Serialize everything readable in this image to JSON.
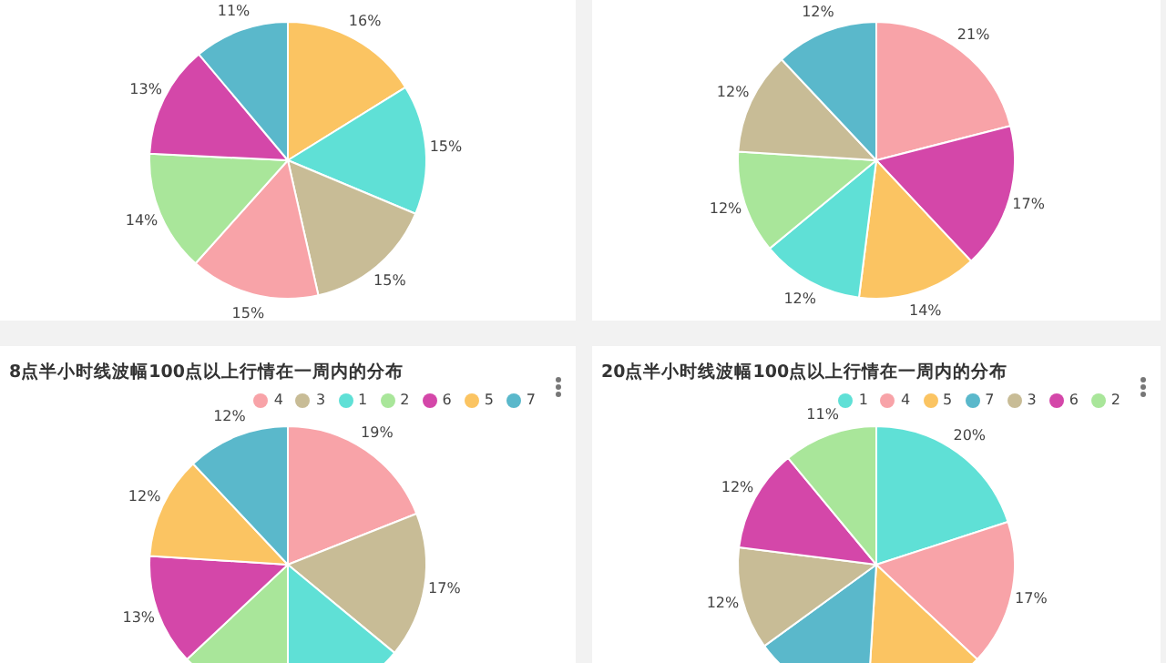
{
  "chart_data": [
    {
      "type": "pie",
      "categories": [
        null,
        null,
        null,
        null,
        null,
        null,
        null
      ],
      "values": [
        16,
        15,
        15,
        15,
        14,
        13,
        11
      ],
      "colors": [
        "#fbc462",
        "#5fe0d6",
        "#c8bc96",
        "#f8a3a8",
        "#a9e69a",
        "#d447a9",
        "#5ab8cb"
      ],
      "value_labels": [
        "16%",
        "15%",
        "15%",
        "15%",
        "14%",
        "13%",
        "11%"
      ]
    },
    {
      "type": "pie",
      "categories": [
        null,
        null,
        null,
        null,
        null,
        null,
        null
      ],
      "values": [
        21,
        17,
        14,
        12,
        12,
        12,
        12
      ],
      "colors": [
        "#f8a3a8",
        "#d447a9",
        "#fbc462",
        "#5fe0d6",
        "#a9e69a",
        "#c8bc96",
        "#5ab8cb"
      ],
      "value_labels": [
        "21%",
        "17%",
        "14%",
        "12%",
        "12%",
        "12%",
        "12%"
      ]
    },
    {
      "type": "pie",
      "title": "8点半小时线波幅100点以上行情在一周内的分布",
      "categories": [
        "4",
        "3",
        "1",
        "2",
        "6",
        "5",
        "7"
      ],
      "values": [
        19,
        17,
        14,
        13,
        13,
        12,
        12
      ],
      "colors": [
        "#f8a3a8",
        "#c8bc96",
        "#5fe0d6",
        "#a9e69a",
        "#d447a9",
        "#fbc462",
        "#5ab8cb"
      ],
      "value_labels": [
        "19%",
        "17%",
        null,
        null,
        "13%",
        "12%",
        "12%"
      ],
      "legend": "top right"
    },
    {
      "type": "pie",
      "title": "20点半小时线波幅100点以上行情在一周内的分布",
      "categories": [
        "1",
        "4",
        "5",
        "7",
        "3",
        "6",
        "2"
      ],
      "values": [
        20,
        17,
        14,
        14,
        12,
        12,
        11
      ],
      "colors": [
        "#5fe0d6",
        "#f8a3a8",
        "#fbc462",
        "#5ab8cb",
        "#c8bc96",
        "#d447a9",
        "#a9e69a"
      ],
      "value_labels": [
        "20%",
        "17%",
        null,
        null,
        "12%",
        "12%",
        "11%"
      ],
      "legend": "top right"
    }
  ]
}
